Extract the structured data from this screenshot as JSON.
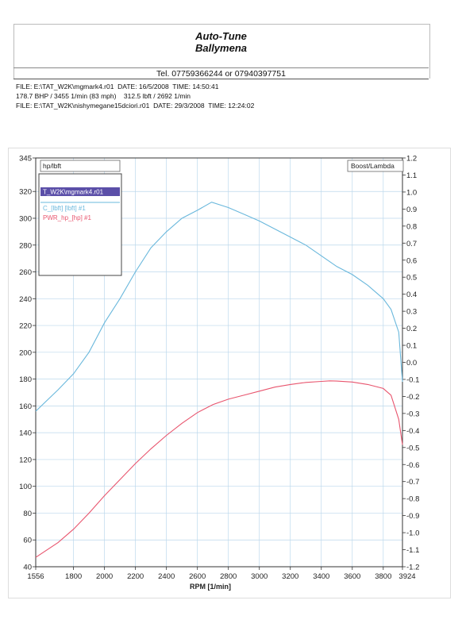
{
  "header": {
    "title": "Auto-Tune",
    "subtitle": "Ballymena",
    "tel": "Tel. 07759366244  or  07940397751"
  },
  "info": {
    "line1": "FILE: E:\\TAT_W2K\\mgmark4.r01  DATE: 16/5/2008  TIME: 14:50:41",
    "line2": "178.7 BHP / 3455 1/min (83 mph)    312.5 lbft / 2692 1/min",
    "line3": "FILE: E:\\TAT_W2K\\nishymegane15dciori.r01  DATE: 29/3/2008  TIME: 12:24:02"
  },
  "chart_data": {
    "type": "line",
    "xlabel": "RPM  [1/min]",
    "ylabel_left": "hp/lbft",
    "ylabel_right": "Boost/Lambda",
    "xlim": [
      1556,
      3924
    ],
    "ylim_left": [
      40,
      345
    ],
    "ylim_right": [
      -1.2,
      1.2
    ],
    "x_ticks": [
      1556,
      1800,
      2000,
      2200,
      2400,
      2600,
      2800,
      3000,
      3200,
      3400,
      3600,
      3800,
      3924
    ],
    "y_left_ticks": [
      40,
      60,
      80,
      100,
      120,
      140,
      160,
      180,
      200,
      220,
      240,
      260,
      280,
      300,
      320,
      345
    ],
    "y_right_ticks": [
      "-1.2",
      "-1.1",
      "-1.0",
      "-0.9",
      "-0.8",
      "-0.7",
      "-0.6",
      "-0.5",
      "-0.4",
      "-0.3",
      "-0.2",
      "-0.1",
      "0.0",
      "0.1",
      "0.2",
      "0.3",
      "0.4",
      "0.5",
      "0.6",
      "0.7",
      "0.8",
      "0.9",
      "1.0",
      "1.1",
      "1.2"
    ],
    "grid": true,
    "legend_position": "top-left",
    "legend_header": "T_W2K\\mgmark4.r01",
    "series": [
      {
        "name": "C_[lbft] [lbft] #1",
        "color": "#6ab8dc",
        "x": [
          1556,
          1700,
          1800,
          1900,
          2000,
          2100,
          2200,
          2300,
          2400,
          2500,
          2600,
          2692,
          2800,
          2900,
          3000,
          3100,
          3200,
          3300,
          3400,
          3500,
          3600,
          3700,
          3800,
          3850,
          3900,
          3924
        ],
        "values": [
          156,
          172,
          184,
          200,
          222,
          240,
          260,
          278,
          290,
          300,
          306,
          312,
          308,
          303,
          298,
          292,
          286,
          280,
          272,
          264,
          258,
          250,
          240,
          232,
          215,
          178
        ]
      },
      {
        "name": "PWR_hp_[hp] #1",
        "color": "#e8556e",
        "x": [
          1556,
          1700,
          1800,
          1900,
          2000,
          2100,
          2200,
          2300,
          2400,
          2500,
          2600,
          2700,
          2800,
          2900,
          3000,
          3100,
          3200,
          3300,
          3400,
          3455,
          3500,
          3600,
          3700,
          3800,
          3850,
          3900,
          3924
        ],
        "values": [
          47,
          58,
          68,
          80,
          93,
          105,
          117,
          128,
          138,
          147,
          155,
          161,
          165,
          168,
          171,
          174,
          176,
          177.5,
          178.3,
          178.7,
          178.5,
          177.8,
          176,
          173,
          168,
          150,
          131
        ]
      }
    ]
  }
}
